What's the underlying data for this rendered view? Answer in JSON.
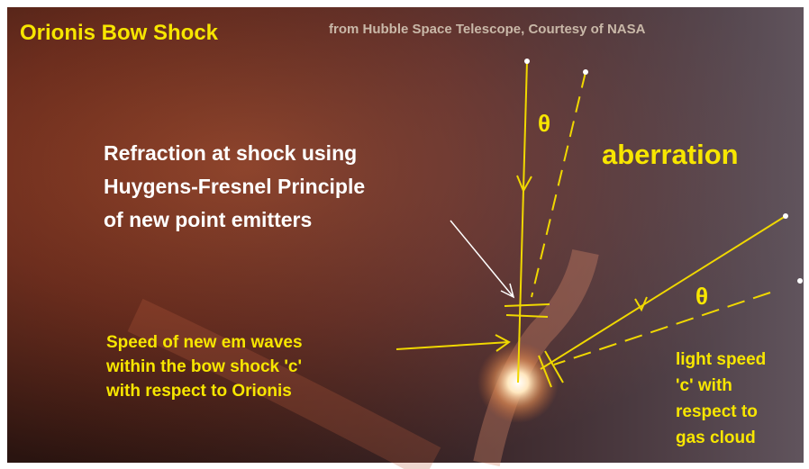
{
  "title": "Orionis Bow Shock",
  "credit": "from Hubble Space Telescope, Courtesy of NASA",
  "annotations": {
    "refraction": [
      "Refraction at shock using",
      "Huygens-Fresnel Principle",
      "of new point emitters"
    ],
    "aberration": "aberration",
    "theta_top": "θ",
    "theta_right": "θ",
    "speed": [
      "Speed of new em waves",
      "within the bow shock 'c'",
      "with respect to Orionis"
    ],
    "light_speed": [
      "light speed",
      "'c' with",
      "respect to",
      "gas cloud"
    ]
  }
}
